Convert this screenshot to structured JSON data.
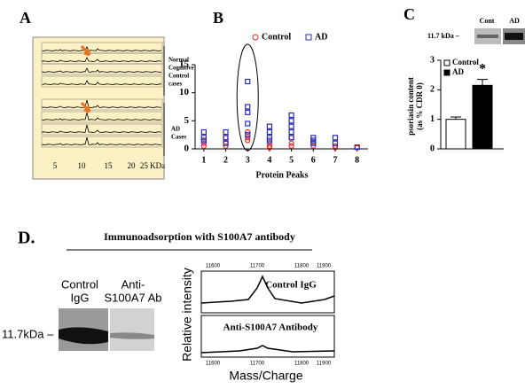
{
  "panel_a": {
    "label": "A",
    "tick_labels": [
      "5",
      "10",
      "15",
      "20",
      "25 KDa"
    ],
    "groups": [
      [
        "Normal",
        "Cognitive",
        "Control",
        "cases"
      ],
      [
        "AD",
        "Cases"
      ]
    ]
  },
  "chart_data": [
    {
      "type": "scatter",
      "label": "B",
      "x_label": "Protein Peaks",
      "xlim": [
        0.6,
        8.5
      ],
      "xticks": [
        1,
        2,
        3,
        4,
        5,
        6,
        7,
        8
      ],
      "ylim": [
        0,
        15
      ],
      "yticks": [
        0,
        5,
        10,
        15
      ],
      "series": [
        {
          "name": "Control",
          "color": "#e0282a",
          "marker": "circle",
          "x": [
            1,
            1,
            1,
            2,
            2,
            2,
            3,
            3,
            3,
            4,
            4,
            4,
            5,
            5,
            5,
            6,
            6,
            7,
            7,
            8
          ],
          "values": [
            1,
            0.5,
            1.5,
            1,
            0.5,
            2,
            3,
            1.5,
            2,
            1,
            0.5,
            0.2,
            2,
            1,
            0.5,
            0.5,
            1,
            0.5,
            0.2,
            0.2
          ]
        },
        {
          "name": "AD",
          "color": "#2a2ab8",
          "marker": "square",
          "x": [
            1,
            1,
            1,
            2,
            2,
            2,
            3,
            3,
            3,
            3,
            3,
            4,
            4,
            4,
            4,
            5,
            5,
            5,
            5,
            5,
            6,
            6,
            6,
            7,
            7,
            8
          ],
          "values": [
            3,
            2,
            1.5,
            3,
            2,
            1,
            12,
            7.5,
            6.5,
            4.5,
            2.5,
            4,
            3,
            2,
            1.5,
            6,
            5,
            4,
            3,
            2,
            2,
            1.5,
            1,
            2,
            1,
            0.3
          ]
        }
      ]
    },
    {
      "type": "bar",
      "label": "C",
      "y_label": [
        "psoriasin content",
        "(as % CDR 0)"
      ],
      "annotation": "*",
      "blot": {
        "marker": "11.7 kDa –",
        "lanes": [
          "Cont",
          "AD"
        ]
      },
      "categories": [
        null
      ],
      "ylim": [
        0,
        3
      ],
      "yticks": [
        0,
        1,
        2,
        3
      ],
      "series": [
        {
          "name": "Control",
          "color": "#ffffff",
          "values": [
            1.0
          ],
          "errors": [
            0.08
          ]
        },
        {
          "name": "AD",
          "color": "#000000",
          "values": [
            2.15
          ],
          "errors": [
            0.2
          ]
        }
      ]
    }
  ],
  "panel_d": {
    "label": "D.",
    "title": "Immunoadsorption with S100A7 antibody",
    "lanes": [
      [
        "Control",
        "IgG"
      ],
      [
        "Anti-",
        "S100A7 Ab"
      ]
    ],
    "marker": "11.7kDa –",
    "spectra": [
      "Control IgG",
      "Anti-S100A7 Antibody"
    ],
    "tick_labels": [
      "11600",
      "11700",
      "11800",
      "11900"
    ],
    "y_label": "Relative intensity",
    "x_label": "Mass/Charge"
  }
}
